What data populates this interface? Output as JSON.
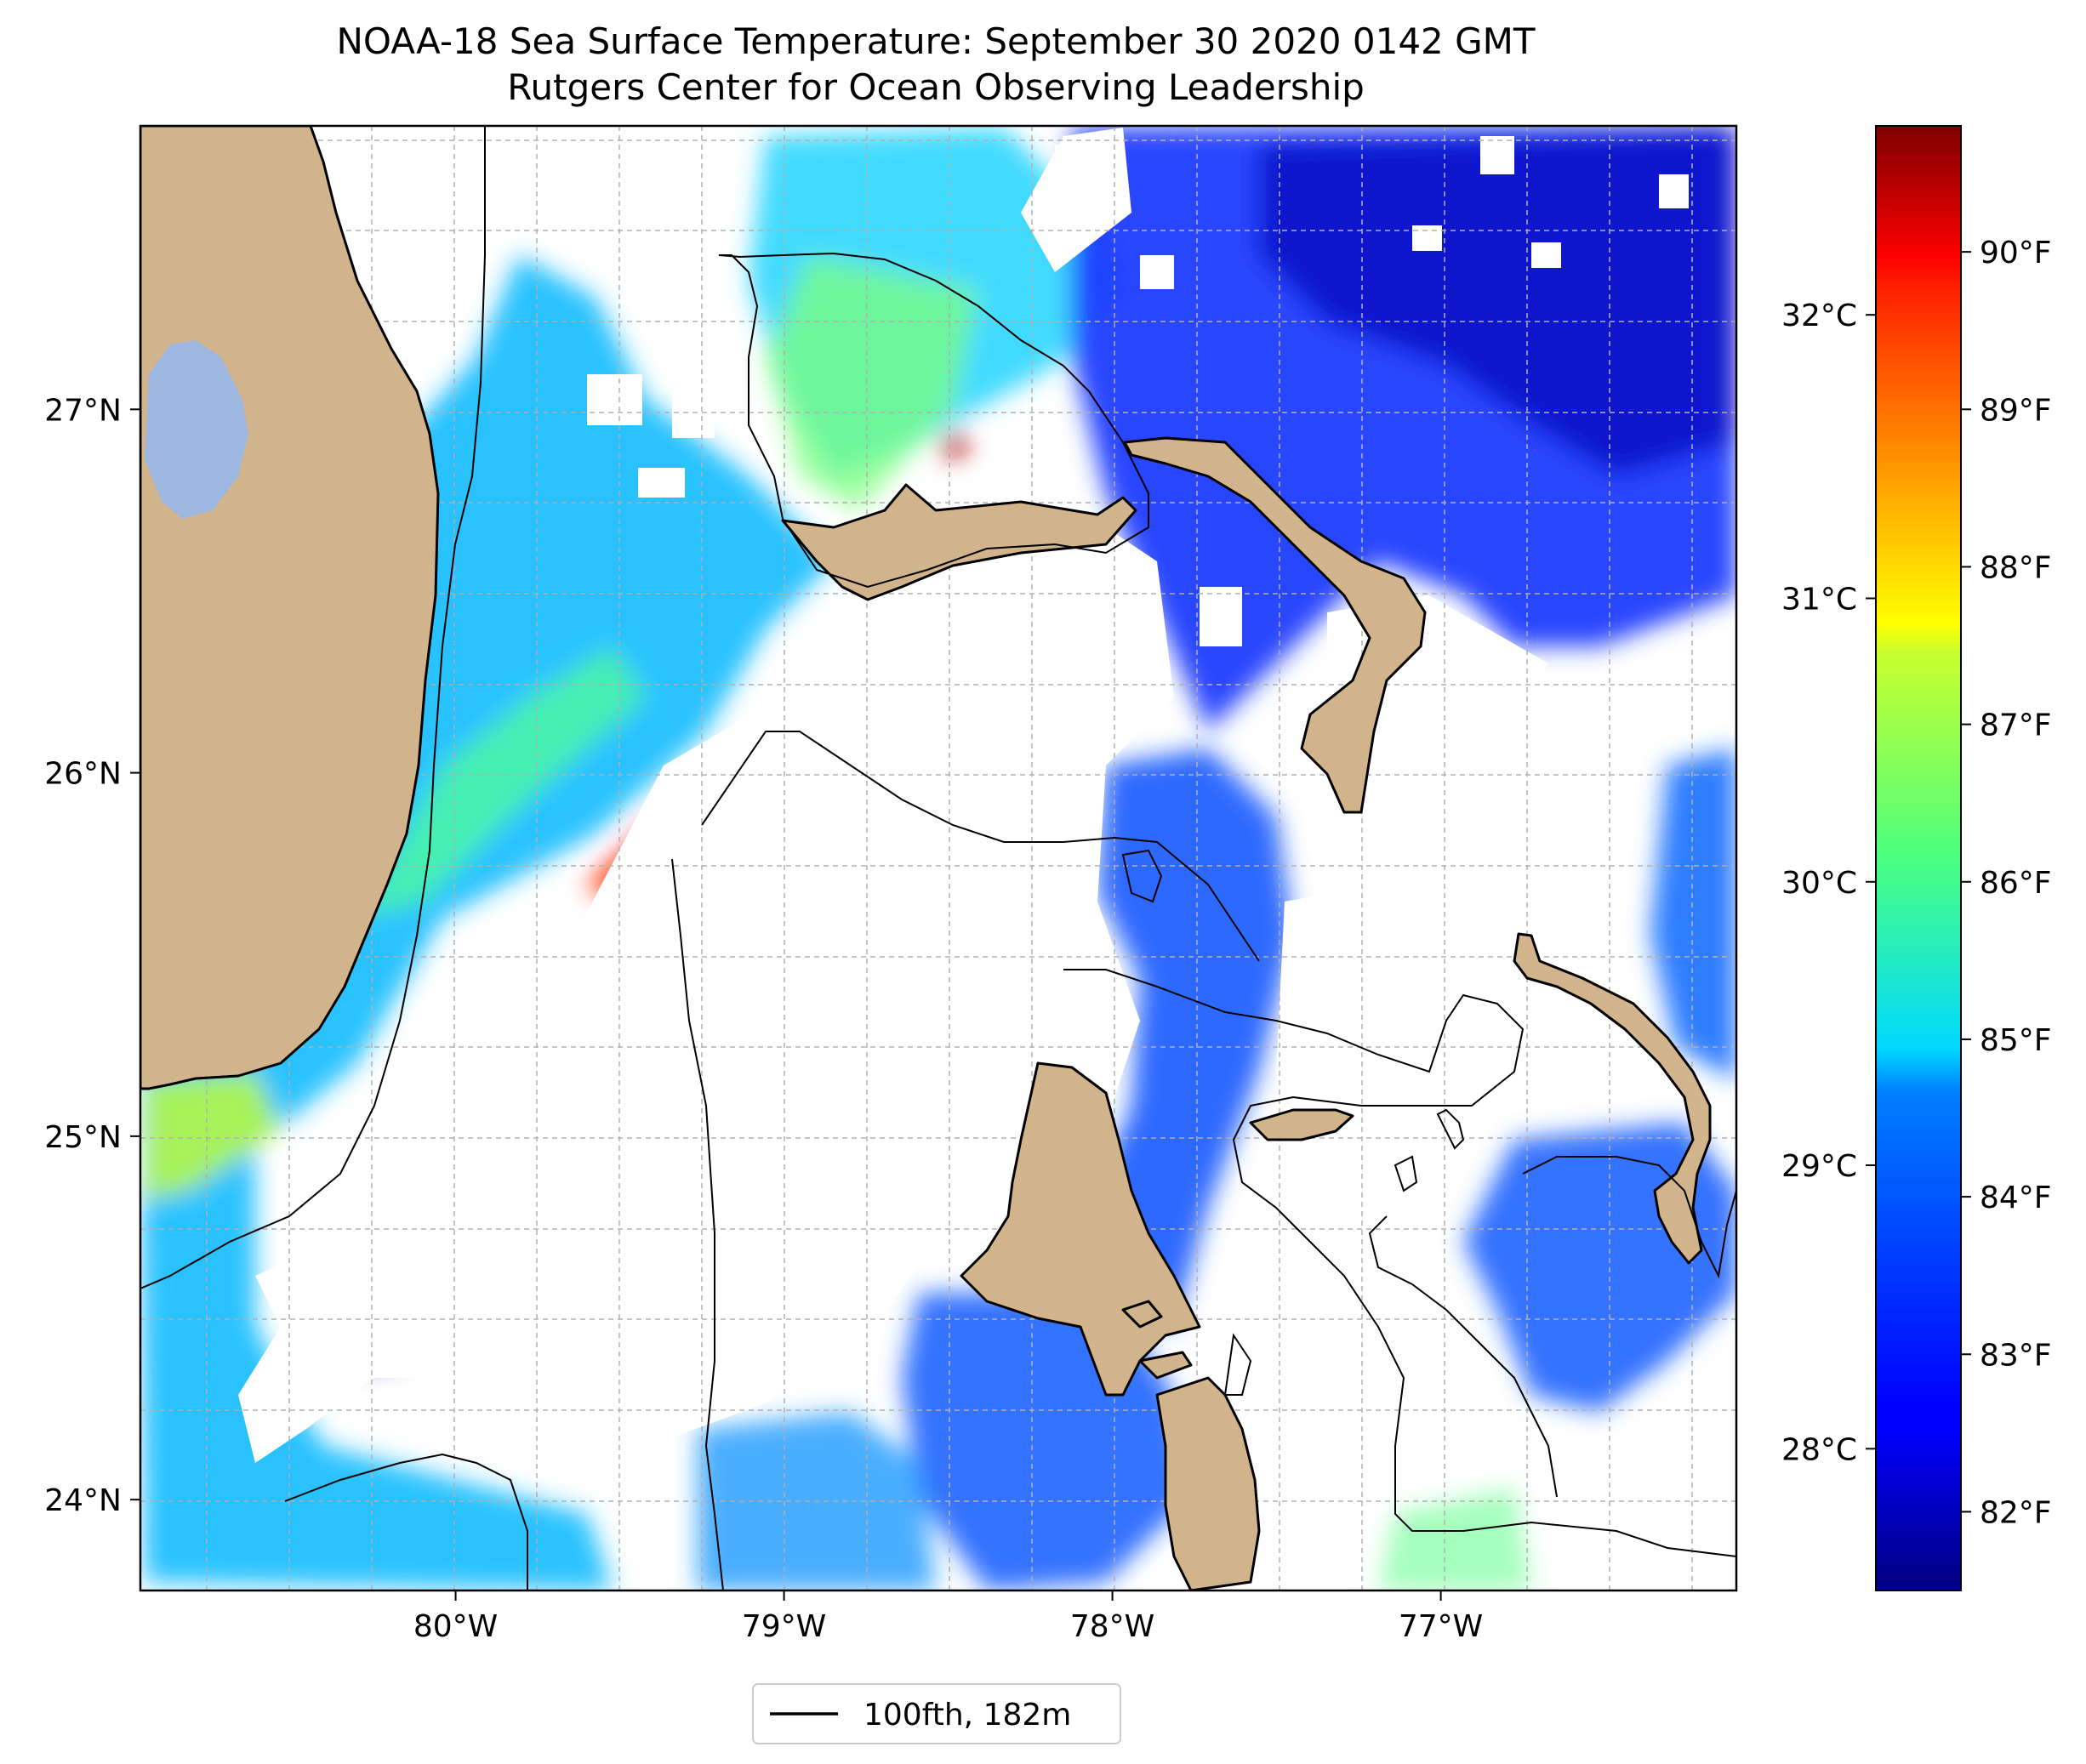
{
  "title": {
    "line1": "NOAA-18 Sea Surface Temperature: September 30 2020 0142 GMT",
    "line2": "Rutgers Center for Ocean Observing Leadership"
  },
  "map": {
    "lon_range": [
      -80.96,
      -76.1
    ],
    "lat_range": [
      23.75,
      27.78
    ],
    "lon_ticks": [
      {
        "value": -80,
        "label": "80°W"
      },
      {
        "value": -79,
        "label": "79°W"
      },
      {
        "value": -78,
        "label": "78°W"
      },
      {
        "value": -77,
        "label": "77°W"
      }
    ],
    "lat_ticks": [
      {
        "value": 27,
        "label": "27°N"
      },
      {
        "value": 26,
        "label": "26°N"
      },
      {
        "value": 25,
        "label": "25°N"
      },
      {
        "value": 24,
        "label": "24°N"
      }
    ],
    "grid": true,
    "colors": {
      "land": "#d2b48c",
      "lake": "#9db7e0",
      "no_data": "#ffffff",
      "coastline": "#000000",
      "isobath": "#000000",
      "grid": "#b0b0b0"
    },
    "colormap": "jet"
  },
  "legend": {
    "entries": [
      {
        "label": "100fth, 182m",
        "color": "#000000"
      }
    ],
    "placement": "below-center"
  },
  "colorbar": {
    "colormap": "jet",
    "celsius_ticks": [
      {
        "value": 28,
        "label": "28°C"
      },
      {
        "value": 29,
        "label": "29°C"
      },
      {
        "value": 30,
        "label": "30°C"
      },
      {
        "value": 31,
        "label": "31°C"
      },
      {
        "value": 32,
        "label": "32°C"
      }
    ],
    "fahrenheit_ticks": [
      {
        "value": 82,
        "label": "82°F"
      },
      {
        "value": 83,
        "label": "83°F"
      },
      {
        "value": 84,
        "label": "84°F"
      },
      {
        "value": 85,
        "label": "85°F"
      },
      {
        "value": 86,
        "label": "86°F"
      },
      {
        "value": 87,
        "label": "87°F"
      },
      {
        "value": 88,
        "label": "88°F"
      },
      {
        "value": 89,
        "label": "89°F"
      },
      {
        "value": 90,
        "label": "90°F"
      }
    ],
    "range_f": [
      81.5,
      90.8
    ]
  }
}
